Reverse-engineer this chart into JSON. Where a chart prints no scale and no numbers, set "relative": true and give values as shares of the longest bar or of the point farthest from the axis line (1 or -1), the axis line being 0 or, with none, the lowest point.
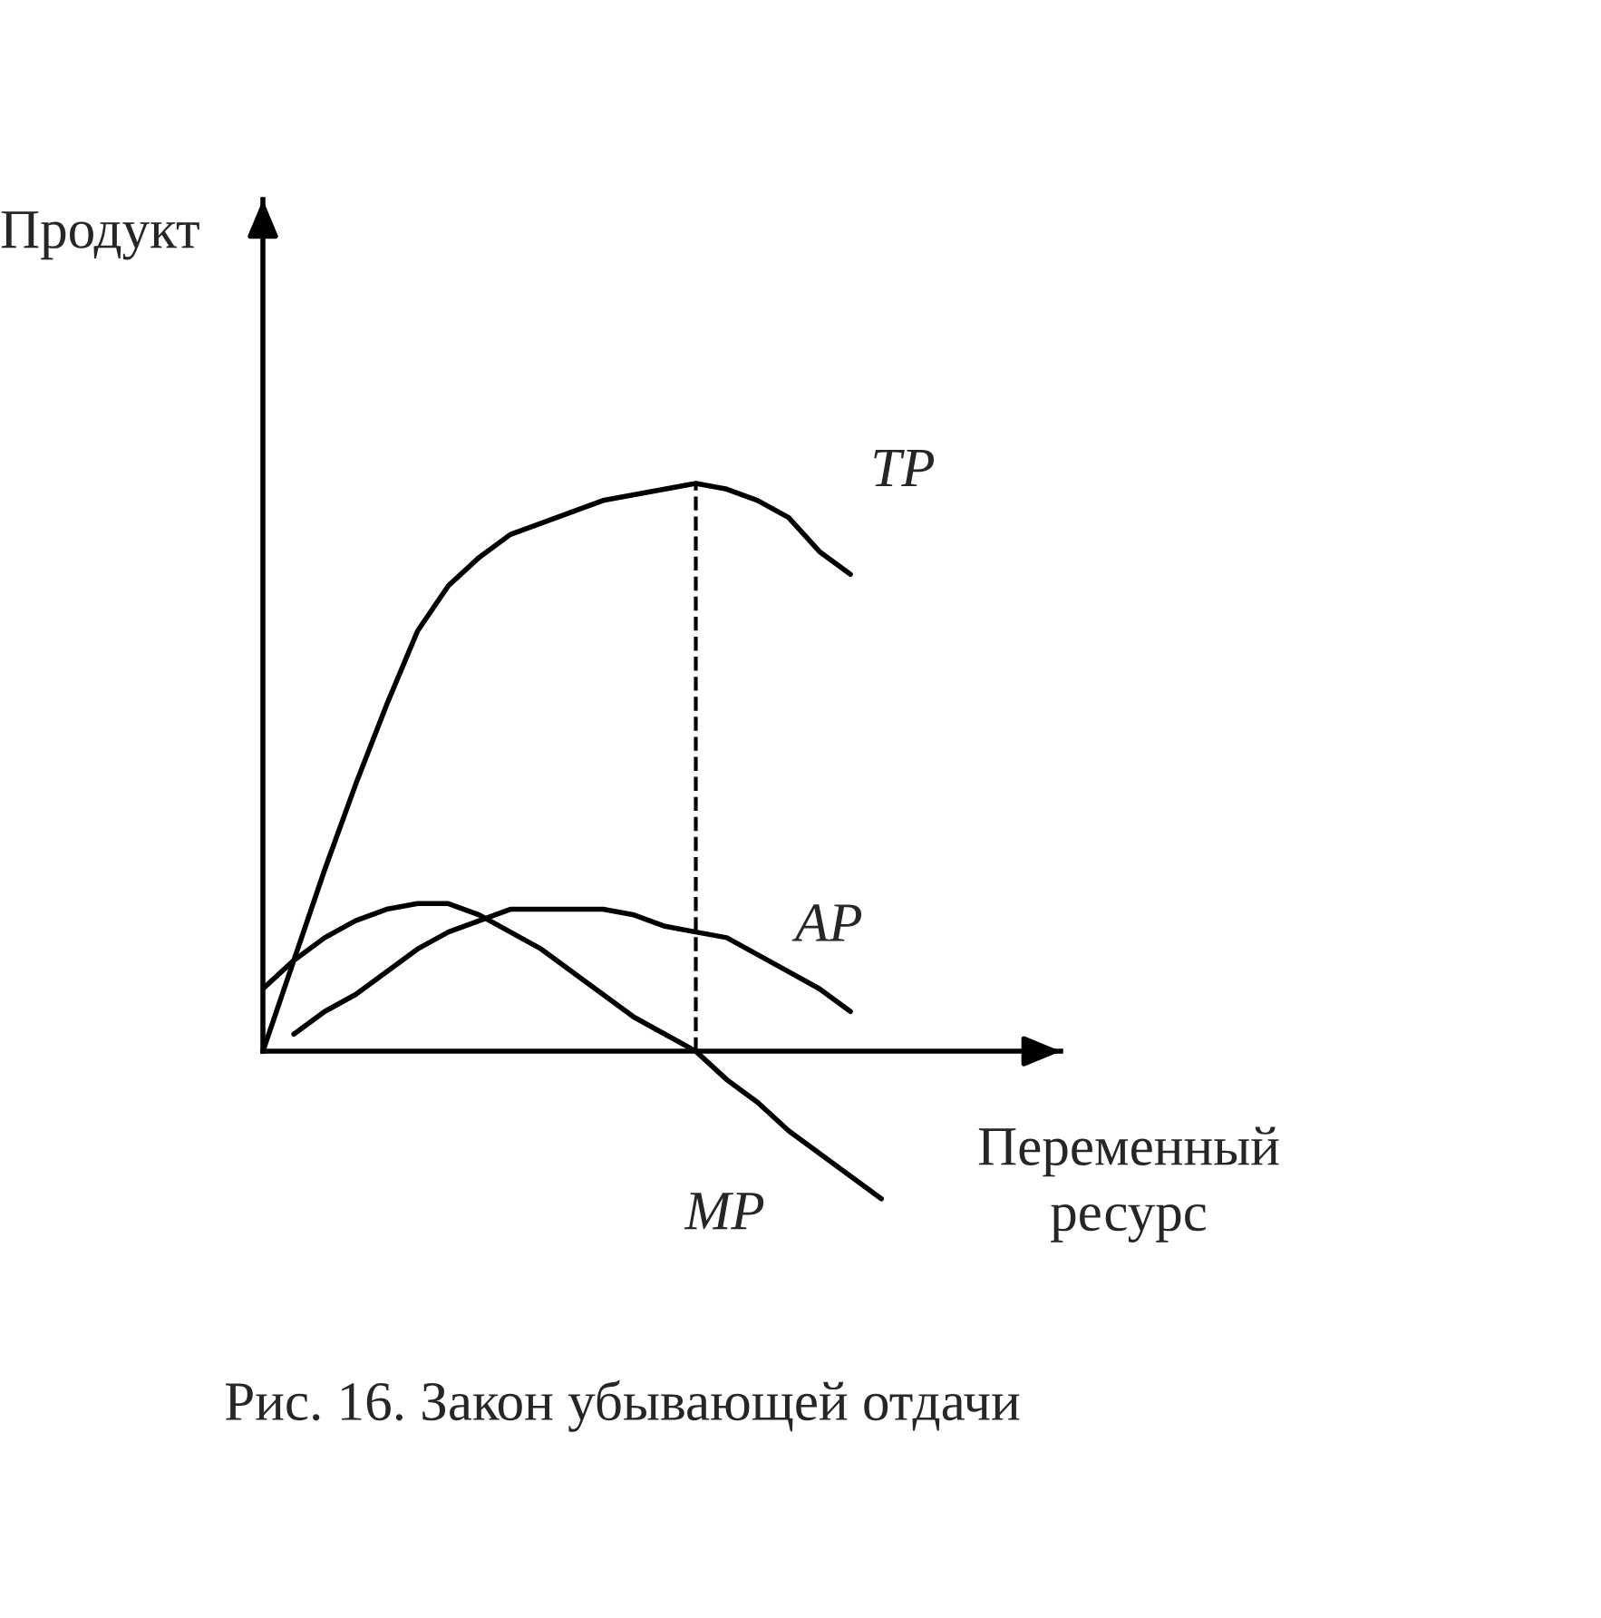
{
  "chart_data": {
    "type": "line",
    "relative": true,
    "legend": false,
    "ylabel": "Продукт",
    "xlabel": "Переменный\nресурс",
    "annotations": [
      "Рис. 16. Закон убывающей отдачи"
    ],
    "categories": [
      null,
      null,
      null,
      null,
      null,
      null,
      null,
      null,
      null,
      null,
      null,
      null,
      null,
      null,
      null,
      null,
      null,
      null,
      null,
      null,
      null
    ],
    "series": [
      {
        "name": "TP",
        "color": "#000000",
        "values": [
          0,
          0.16,
          0.32,
          0.47,
          0.61,
          0.74,
          0.82,
          0.87,
          0.91,
          0.93,
          0.95,
          0.97,
          0.98,
          0.99,
          1.0,
          0.99,
          0.97,
          0.94,
          0.88,
          0.84,
          null
        ]
      },
      {
        "name": "AP",
        "color": "#000000",
        "values": [
          null,
          0.03,
          0.07,
          0.1,
          0.14,
          0.18,
          0.21,
          0.23,
          0.25,
          0.25,
          0.25,
          0.25,
          0.24,
          0.22,
          0.21,
          0.2,
          0.17,
          0.14,
          0.11,
          0.07,
          null
        ]
      },
      {
        "name": "MP",
        "color": "#000000",
        "values": [
          0.11,
          0.16,
          0.2,
          0.23,
          0.25,
          0.26,
          0.26,
          0.24,
          0.21,
          0.18,
          0.14,
          0.1,
          0.06,
          0.03,
          0,
          -0.05,
          -0.09,
          -0.14,
          -0.18,
          -0.22,
          -0.26
        ]
      }
    ]
  }
}
